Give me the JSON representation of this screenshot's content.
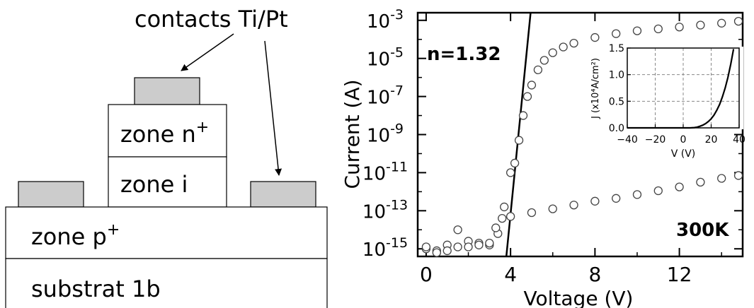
{
  "structure": {
    "contacts_label": "contacts Ti/Pt",
    "zone_n_label": "zone n",
    "zone_n_sup": "+",
    "zone_i_label": "zone i",
    "zone_p_label": "zone p",
    "zone_p_sup": "+",
    "substrate_label": "substrat 1b",
    "contact_color": "#cccccc",
    "layer_color": "#ffffff",
    "outline_color": "#000000"
  },
  "chart_data": [
    {
      "type": "scatter",
      "xlabel": "Voltage (V)",
      "ylabel": "Current (A)",
      "xlim": [
        -0.4,
        15.0
      ],
      "ylim_log10": [
        -15.4,
        -2.6
      ],
      "yscale": "log",
      "x_ticks": [
        "0",
        "4",
        "8",
        "12"
      ],
      "x_tick_values": [
        0,
        4,
        8,
        12
      ],
      "y_tick_base": "10",
      "y_tick_exponents": [
        "-3",
        "-5",
        "-7",
        "-9",
        "-11",
        "-13",
        "-15"
      ],
      "y_tick_values": [
        -3,
        -5,
        -7,
        -9,
        -11,
        -13,
        -15
      ],
      "annotations": {
        "ideality": "n=1.32",
        "temperature": "300K"
      },
      "series": [
        {
          "marker": "open-circle",
          "x": [
            0.0,
            0.5,
            1.0,
            1.5,
            2.0,
            2.5,
            3.0,
            3.4,
            3.7,
            4.0,
            4.2,
            4.4,
            4.6,
            4.8,
            5.0,
            5.3,
            5.6,
            6.0,
            6.5,
            7.0,
            8.0,
            9.0,
            10.0,
            11.0,
            12.0,
            13.0,
            14.0,
            14.8
          ],
          "log10_y": [
            -15.0,
            -15.1,
            -14.8,
            -14.0,
            -14.6,
            -14.7,
            -14.8,
            -14.2,
            -12.8,
            -11.0,
            -10.5,
            -9.3,
            -8.0,
            -7.0,
            -6.4,
            -5.6,
            -5.1,
            -4.7,
            -4.4,
            -4.2,
            -3.9,
            -3.7,
            -3.55,
            -3.45,
            -3.35,
            -3.25,
            -3.15,
            -3.05
          ]
        },
        {
          "marker": "open-circle",
          "x": [
            0.0,
            0.5,
            1.0,
            1.5,
            2.0,
            2.5,
            3.0,
            3.3,
            3.6,
            4.0,
            5.0,
            6.0,
            7.0,
            8.0,
            9.0,
            10.0,
            11.0,
            12.0,
            13.0,
            14.0,
            14.8
          ],
          "log10_y": [
            -14.9,
            -15.2,
            -15.1,
            -14.9,
            -14.9,
            -14.8,
            -14.7,
            -13.9,
            -13.4,
            -13.3,
            -13.1,
            -12.9,
            -12.7,
            -12.5,
            -12.35,
            -12.15,
            -11.95,
            -11.75,
            -11.5,
            -11.3,
            -11.15
          ]
        }
      ],
      "fit_line": {
        "x": [
          3.8,
          4.95
        ],
        "log10_y": [
          -15.4,
          -2.6
        ]
      }
    },
    {
      "type": "line",
      "xlabel": "V (V)",
      "ylabel": "J (x10⁴A/cm²)",
      "xlim": [
        -40,
        40
      ],
      "ylim": [
        0.0,
        1.5
      ],
      "grid": true,
      "x_ticks": [
        "−40",
        "−20",
        "0",
        "20",
        "40"
      ],
      "x_tick_values": [
        -40,
        -20,
        0,
        20,
        40
      ],
      "y_ticks": [
        "0.0",
        "0.5",
        "1.0",
        "1.5"
      ],
      "y_tick_values": [
        0.0,
        0.5,
        1.0,
        1.5
      ],
      "x": [
        -40,
        5,
        8,
        10,
        12,
        14,
        16,
        18,
        20,
        22,
        24,
        26,
        28,
        30,
        32,
        34,
        36
      ],
      "y": [
        0.0,
        0.0,
        0.005,
        0.015,
        0.03,
        0.05,
        0.08,
        0.12,
        0.17,
        0.24,
        0.33,
        0.44,
        0.58,
        0.75,
        0.95,
        1.2,
        1.48
      ]
    }
  ]
}
